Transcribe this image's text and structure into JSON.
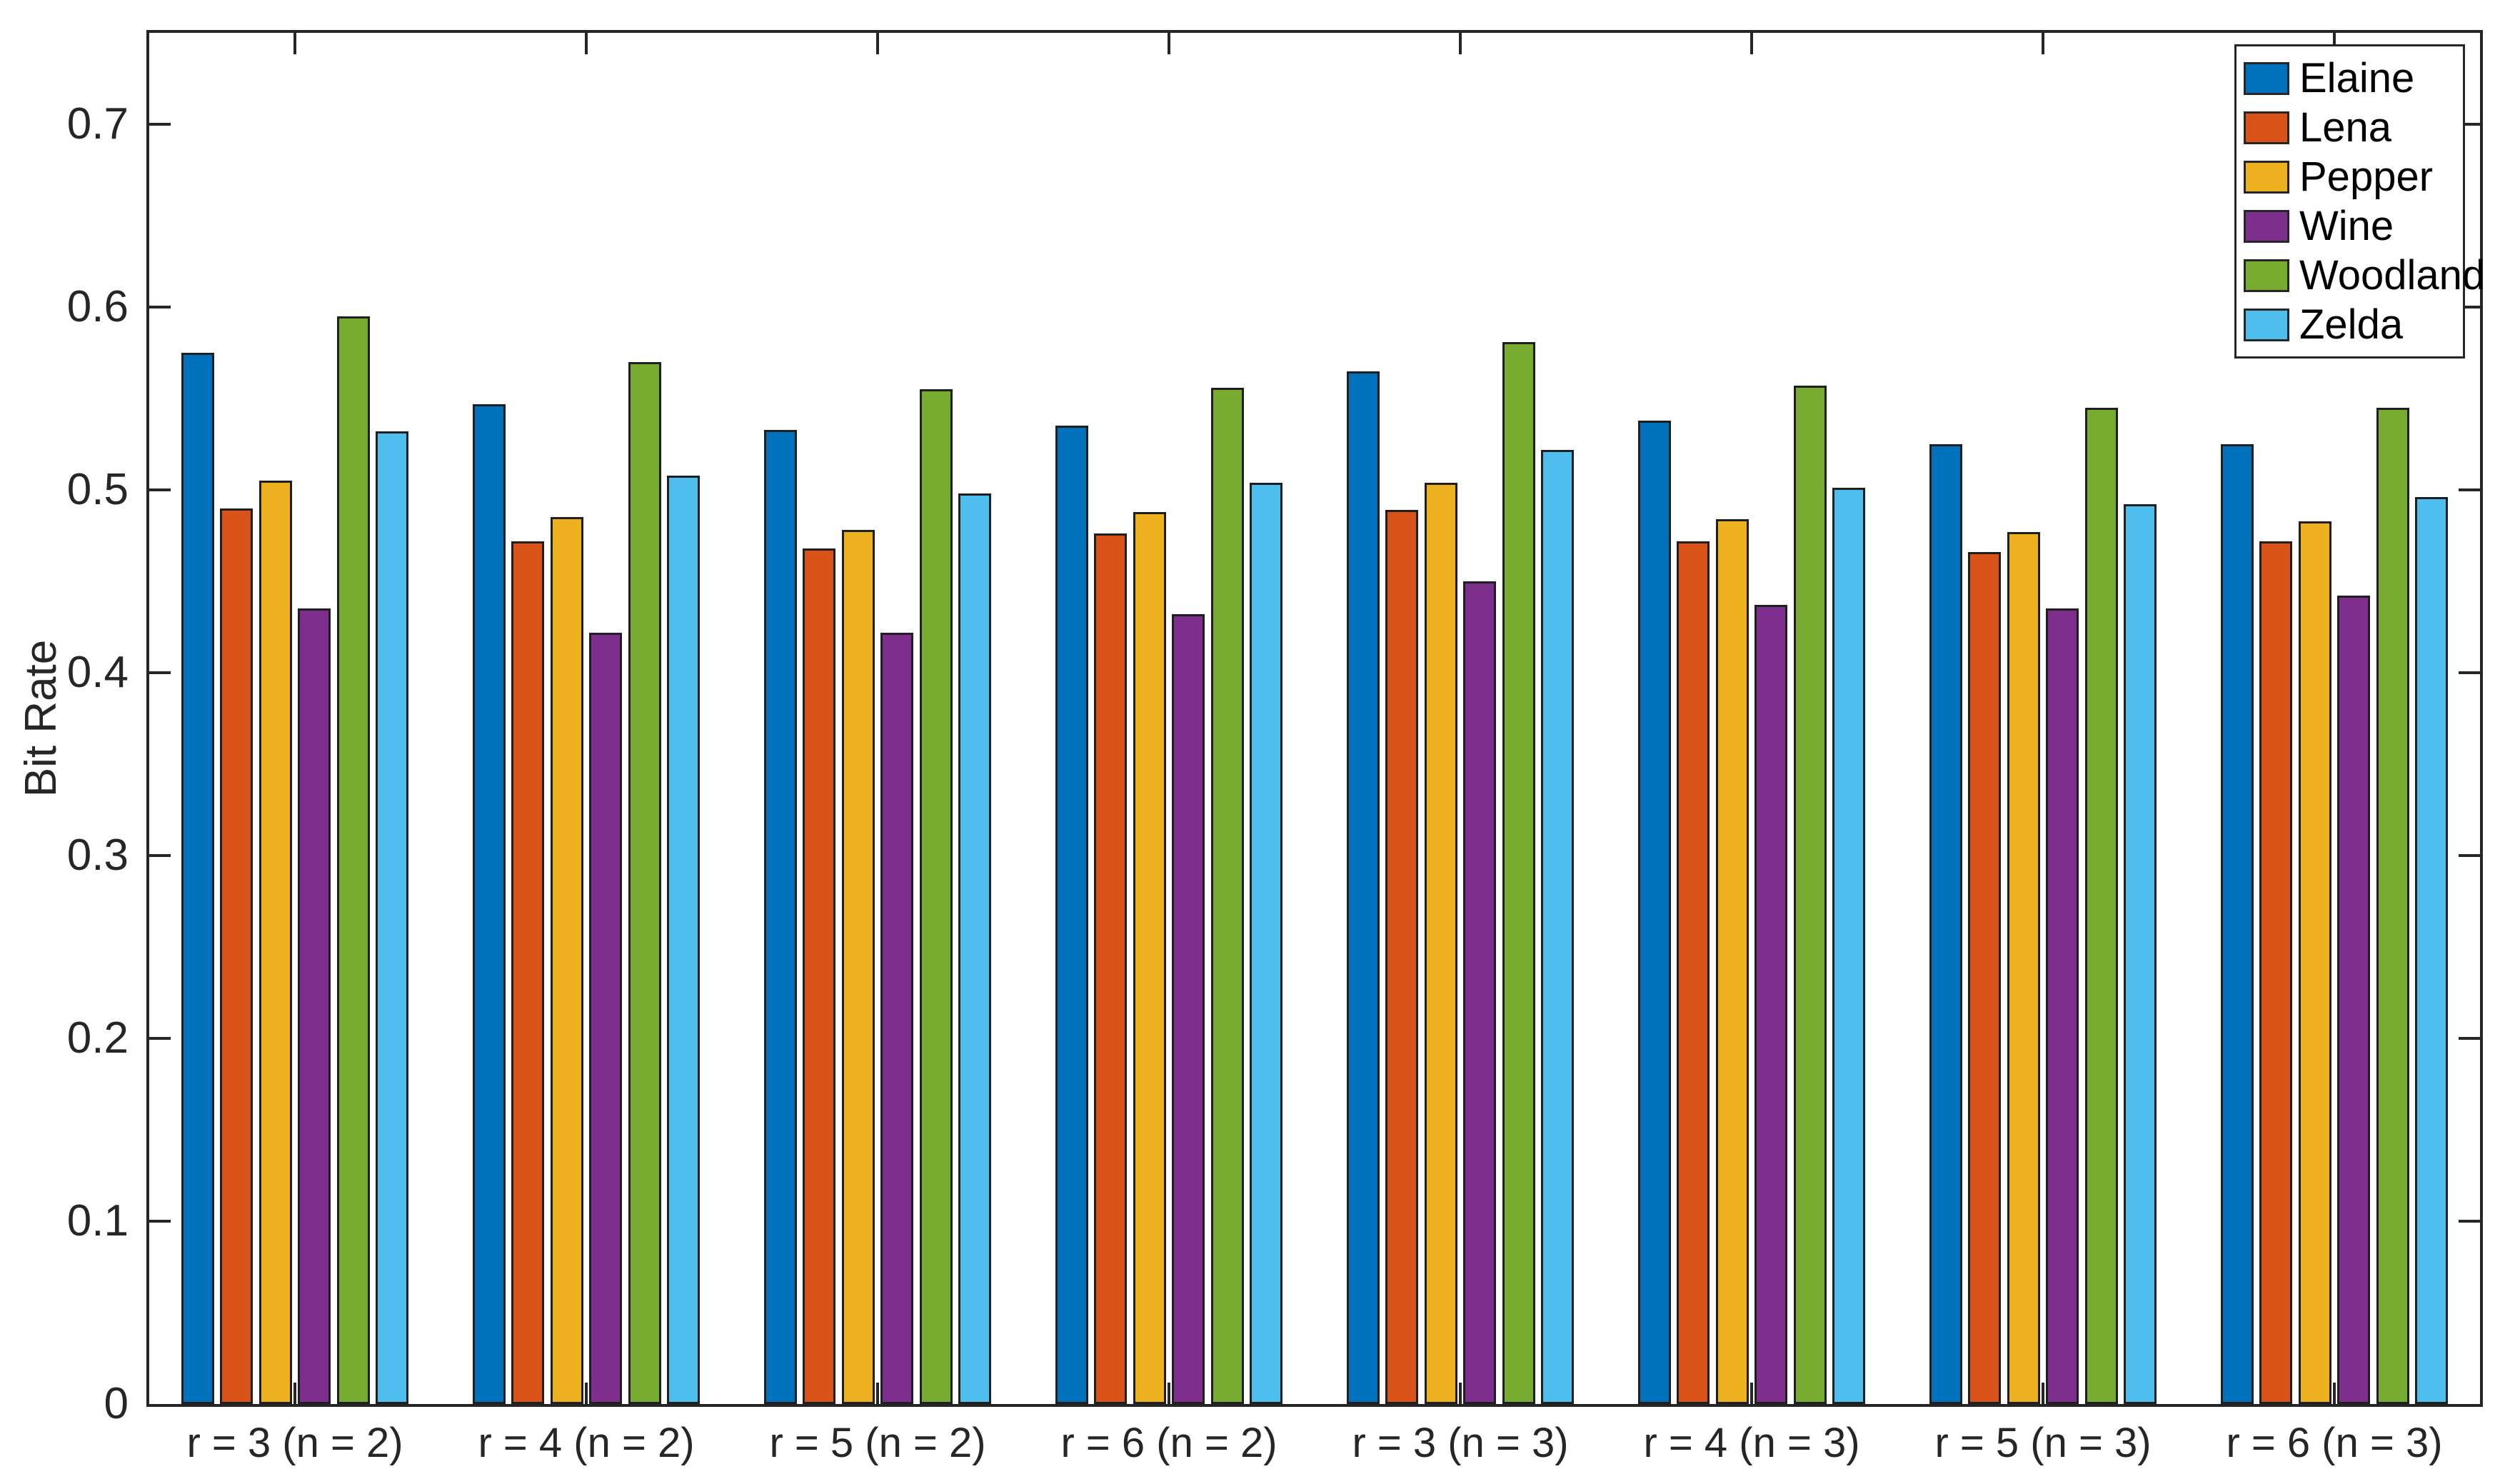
{
  "figure": {
    "ylabel": "Bit Rate",
    "axis_color": "#262626",
    "bar_edge_color": "#1f1f1f",
    "background": "#ffffff"
  },
  "chart_data": {
    "type": "bar",
    "title": "",
    "xlabel": "",
    "ylabel": "Bit Rate",
    "ylim": [
      0,
      0.75
    ],
    "grid": false,
    "legend_position": "northeast-inside",
    "yticks": [
      "0",
      "0.1",
      "0.2",
      "0.3",
      "0.4",
      "0.5",
      "0.6",
      "0.7"
    ],
    "ytick_values": [
      0,
      0.1,
      0.2,
      0.3,
      0.4,
      0.5,
      0.6,
      0.7
    ],
    "categories": [
      "r = 3 (n = 2)",
      "r = 4 (n = 2)",
      "r = 5 (n = 2)",
      "r = 6 (n = 2)",
      "r = 3 (n = 3)",
      "r = 4 (n = 3)",
      "r = 5 (n = 3)",
      "r = 6 (n = 3)"
    ],
    "series": [
      {
        "name": "Elaine",
        "color": "#0072BD",
        "values": [
          0.575,
          0.547,
          0.533,
          0.535,
          0.565,
          0.538,
          0.525,
          0.525
        ]
      },
      {
        "name": "Lena",
        "color": "#D95319",
        "values": [
          0.49,
          0.472,
          0.468,
          0.476,
          0.489,
          0.472,
          0.466,
          0.472
        ]
      },
      {
        "name": "Pepper",
        "color": "#EDB120",
        "values": [
          0.505,
          0.485,
          0.478,
          0.488,
          0.504,
          0.484,
          0.477,
          0.483
        ]
      },
      {
        "name": "Wine",
        "color": "#7E2F8E",
        "values": [
          0.435,
          0.422,
          0.422,
          0.432,
          0.45,
          0.437,
          0.435,
          0.442
        ]
      },
      {
        "name": "Woodland",
        "color": "#77AC30",
        "values": [
          0.595,
          0.57,
          0.555,
          0.556,
          0.581,
          0.557,
          0.545,
          0.545
        ]
      },
      {
        "name": "Zelda",
        "color": "#4DBEEE",
        "values": [
          0.532,
          0.508,
          0.498,
          0.504,
          0.522,
          0.501,
          0.492,
          0.496
        ]
      }
    ]
  }
}
